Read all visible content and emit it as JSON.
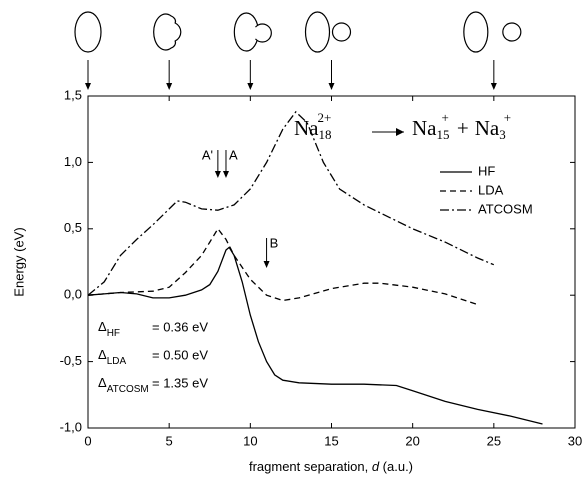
{
  "chart_data": {
    "type": "line",
    "x_label": [
      "fragment separation, ",
      "d",
      " (a.u.)"
    ],
    "y_label": "Energy (eV)",
    "xlim": [
      0,
      30
    ],
    "xticks": [
      0,
      5,
      10,
      15,
      20,
      25,
      30
    ],
    "ylim": [
      -1.0,
      1.5
    ],
    "yticks": [
      {
        "value": -1.0,
        "label": "-1,0"
      },
      {
        "value": -0.5,
        "label": "-0,5"
      },
      {
        "value": 0.0,
        "label": "0,0"
      },
      {
        "value": 0.5,
        "label": "0,5"
      },
      {
        "value": 1.0,
        "label": "1,0"
      },
      {
        "value": 1.5,
        "label": "1,5"
      }
    ],
    "series": [
      {
        "name": "HF",
        "color": "#000000",
        "style": "solid",
        "x": [
          0,
          1,
          2,
          3,
          4,
          5,
          6,
          7,
          7.5,
          8,
          8.5,
          8.7,
          9,
          9.5,
          10,
          10.5,
          11,
          11.5,
          12,
          13,
          15,
          17,
          19,
          20,
          22,
          24,
          26,
          28
        ],
        "values": [
          0,
          0.01,
          0.02,
          0.01,
          -0.02,
          -0.02,
          0.0,
          0.04,
          0.08,
          0.18,
          0.34,
          0.36,
          0.3,
          0.1,
          -0.15,
          -0.35,
          -0.5,
          -0.6,
          -0.64,
          -0.66,
          -0.67,
          -0.67,
          -0.68,
          -0.72,
          -0.8,
          -0.86,
          -0.91,
          -0.97
        ]
      },
      {
        "name": "LDA",
        "color": "#000000",
        "style": "dashed",
        "x": [
          0,
          2,
          4,
          5,
          6,
          7,
          7.5,
          8,
          8.5,
          9,
          10,
          11,
          12,
          13,
          15,
          17,
          18,
          20,
          22,
          24
        ],
        "values": [
          0,
          0.02,
          0.03,
          0.06,
          0.17,
          0.3,
          0.4,
          0.5,
          0.42,
          0.3,
          0.12,
          0.0,
          -0.04,
          -0.02,
          0.05,
          0.09,
          0.09,
          0.06,
          0.01,
          -0.07
        ]
      },
      {
        "name": "ATCOSM",
        "color": "#000000",
        "style": "dashdot",
        "x": [
          0,
          1,
          2,
          3,
          4,
          5,
          5.5,
          6,
          7,
          8,
          9,
          10,
          11,
          12,
          12.8,
          13.5,
          14.5,
          15.5,
          17,
          18,
          20,
          22,
          24,
          25
        ],
        "values": [
          0,
          0.1,
          0.3,
          0.42,
          0.53,
          0.65,
          0.71,
          0.7,
          0.65,
          0.64,
          0.68,
          0.8,
          1.0,
          1.25,
          1.38,
          1.3,
          1.0,
          0.8,
          0.68,
          0.62,
          0.5,
          0.4,
          0.28,
          0.23
        ]
      }
    ],
    "markers": [
      {
        "text": "A'",
        "x": 8.0
      },
      {
        "text": "A",
        "x": 8.5
      },
      {
        "text": "B",
        "x": 11.0
      }
    ],
    "shape_positions": [
      0,
      5,
      10,
      15,
      25
    ],
    "reaction": [
      [
        "Na",
        "18",
        "2+"
      ],
      [
        "Na",
        "15",
        "+"
      ],
      [
        "+"
      ],
      [
        "Na",
        "3",
        "+"
      ]
    ],
    "gaps": [
      [
        "Δ",
        "HF",
        "= 0.36 eV"
      ],
      [
        "Δ",
        "LDA",
        "= 0.50 eV"
      ],
      [
        "Δ",
        "ATCOSM",
        "= 1.35 eV"
      ]
    ]
  }
}
